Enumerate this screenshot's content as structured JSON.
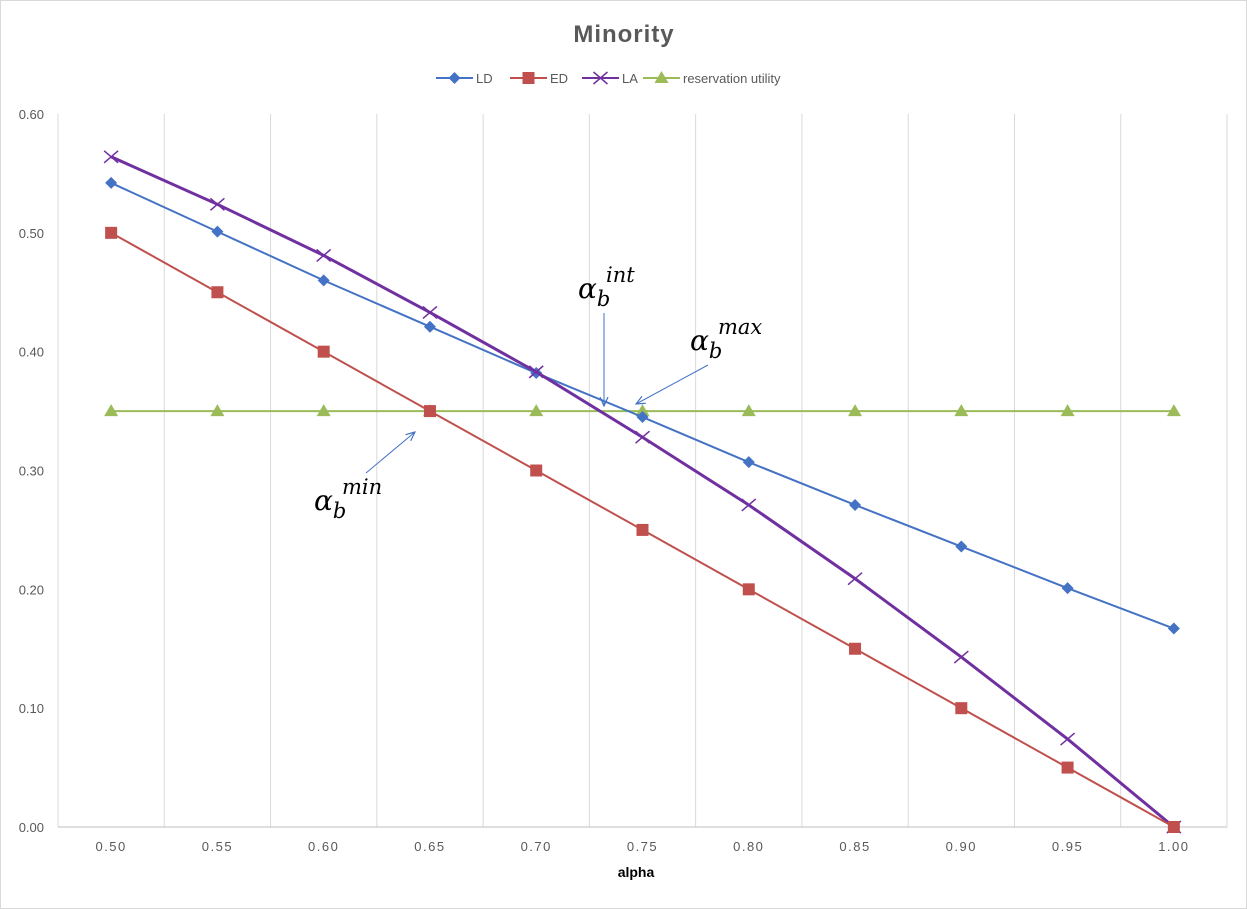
{
  "chart_data": {
    "type": "line",
    "title": "Minority",
    "xlabel": "alpha",
    "ylabel": "",
    "x": [
      0.5,
      0.55,
      0.6,
      0.65,
      0.7,
      0.75,
      0.8,
      0.85,
      0.9,
      0.95,
      1.0
    ],
    "x_tick_labels": [
      "0.50",
      "0.55",
      "0.60",
      "0.65",
      "0.70",
      "0.75",
      "0.80",
      "0.85",
      "0.90",
      "0.95",
      "1.00"
    ],
    "y_tick_labels": [
      "0.00",
      "0.10",
      "0.20",
      "0.30",
      "0.40",
      "0.50",
      "0.60"
    ],
    "ylim": [
      0,
      0.6
    ],
    "grid": "vertical",
    "legend_position": "top",
    "series": [
      {
        "name": "LD",
        "color": "#4472C4",
        "marker": "diamond",
        "values": [
          0.542,
          0.501,
          0.46,
          0.421,
          0.382,
          0.345,
          0.307,
          0.271,
          0.236,
          0.201,
          0.167
        ]
      },
      {
        "name": "ED",
        "color": "#C0504D",
        "marker": "square",
        "values": [
          0.5,
          0.45,
          0.4,
          0.35,
          0.3,
          0.25,
          0.2,
          0.15,
          0.1,
          0.05,
          0.0
        ]
      },
      {
        "name": "LA",
        "color": "#7030A0",
        "marker": "x",
        "values": [
          0.564,
          0.524,
          0.481,
          0.433,
          0.383,
          0.328,
          0.271,
          0.209,
          0.143,
          0.074,
          0.0
        ]
      },
      {
        "name": "reservation utility",
        "color": "#9BBB59",
        "marker": "triangle",
        "values": [
          0.35,
          0.35,
          0.35,
          0.35,
          0.35,
          0.35,
          0.35,
          0.35,
          0.35,
          0.35,
          0.35
        ]
      }
    ],
    "annotations": [
      {
        "base": "α",
        "sub": "b",
        "sup": "int",
        "points_to": [
          0.73,
          0.35
        ]
      },
      {
        "base": "α",
        "sub": "b",
        "sup": "max",
        "points_to": [
          0.745,
          0.35
        ]
      },
      {
        "base": "α",
        "sub": "b",
        "sup": "min",
        "points_to": [
          0.64,
          0.335
        ]
      }
    ]
  }
}
